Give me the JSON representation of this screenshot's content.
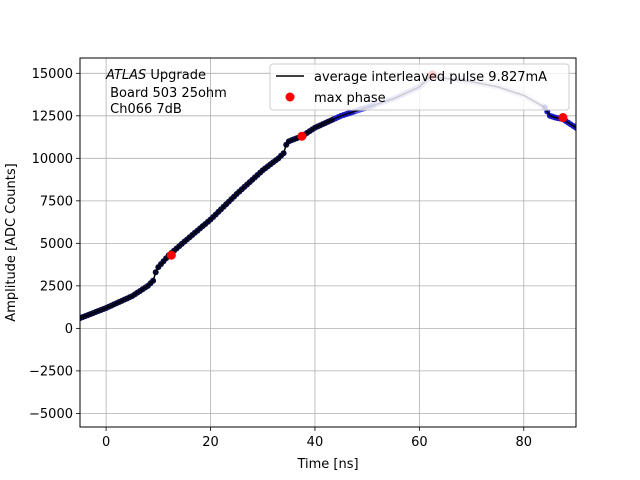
{
  "chart_data": {
    "type": "scatter",
    "xlabel": "Time [ns]",
    "ylabel": "Amplitude [ADC Counts]",
    "xlim": [
      -5,
      90
    ],
    "ylim": [
      -5800,
      15900
    ],
    "xticks": [
      0,
      20,
      40,
      60,
      80
    ],
    "yticks": [
      -5000,
      -2500,
      0,
      2500,
      5000,
      7500,
      10000,
      12500,
      15000
    ],
    "grid": true,
    "legend_position": "top-right",
    "annotation": {
      "italic": "ATLAS",
      "rest": " Upgrade",
      "line2": " Board 503 25ohm",
      "line3": " Ch066 7dB"
    },
    "series": [
      {
        "name": "average interleaved pulse 9.827mA",
        "kind": "line",
        "color": "#000000",
        "x": [
          -5,
          0,
          5,
          8,
          9,
          9.5,
          10,
          12,
          15,
          20,
          25,
          30,
          33,
          34,
          34.5,
          35,
          37.5,
          40,
          45,
          50,
          55,
          60,
          62,
          65,
          70,
          75,
          80,
          84,
          85,
          86,
          87.5,
          90
        ],
        "y": [
          600,
          1200,
          1900,
          2500,
          2800,
          3300,
          3600,
          4300,
          5100,
          6400,
          7900,
          9300,
          10000,
          10300,
          10800,
          11000,
          11300,
          11800,
          12500,
          13000,
          13500,
          14200,
          14800,
          14700,
          14500,
          14200,
          13700,
          13000,
          12500,
          12400,
          12300,
          11800
        ]
      },
      {
        "name": "max phase",
        "kind": "points",
        "color": "#ff0000",
        "x": [
          12.5,
          37.5,
          62.5,
          87.5
        ],
        "y": [
          4300,
          11300,
          14900,
          12400
        ]
      }
    ],
    "phase_point_colors": [
      "#0a0a3c",
      "#1a1acc",
      "#5555ee",
      "#9999f0",
      "#c8c8f8"
    ]
  }
}
